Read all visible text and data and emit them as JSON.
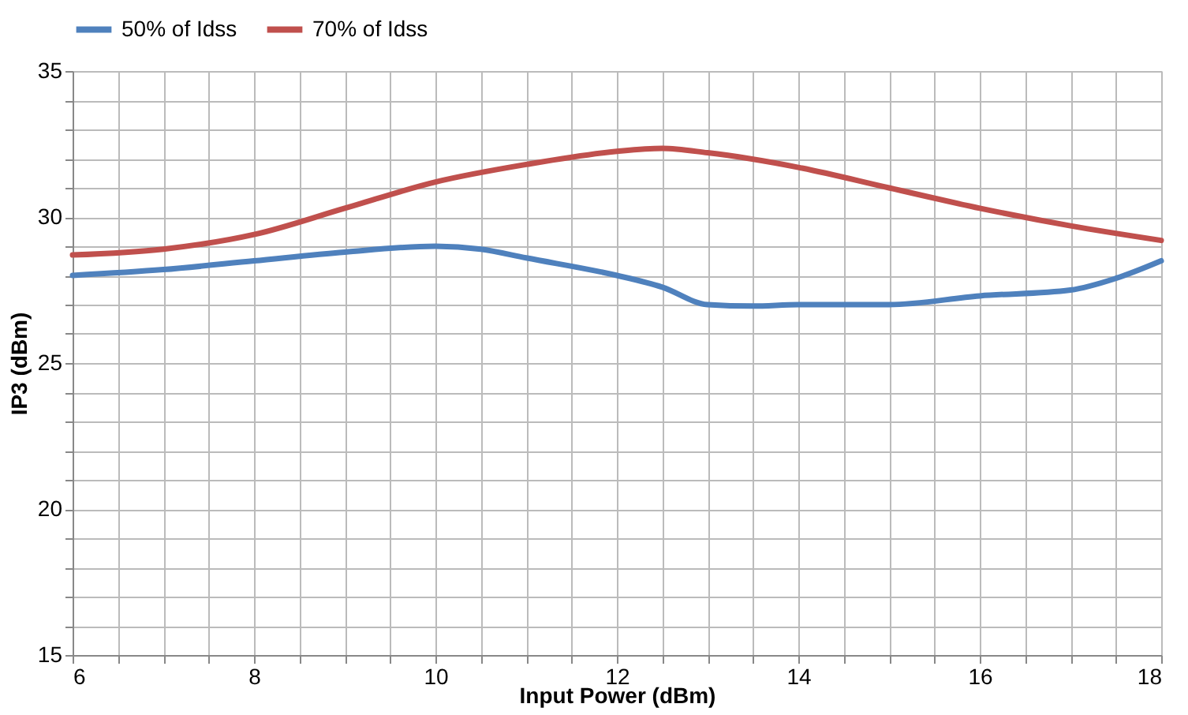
{
  "chart_data": {
    "type": "line",
    "xlabel": "Input Power (dBm)",
    "ylabel": "IP3 (dBm)",
    "xlim": [
      6,
      18
    ],
    "ylim": [
      15,
      35
    ],
    "xticks": [
      6,
      {
        "value": 6.5,
        "label": null
      },
      {
        "value": 7,
        "label": null
      },
      {
        "value": 7.5,
        "label": null
      },
      8,
      {
        "value": 8.5,
        "label": null
      },
      {
        "value": 9,
        "label": null
      },
      {
        "value": 9.5,
        "label": null
      },
      10,
      {
        "value": 10.5,
        "label": null
      },
      {
        "value": 11,
        "label": null
      },
      {
        "value": 11.5,
        "label": null
      },
      12,
      {
        "value": 12.5,
        "label": null
      },
      {
        "value": 13,
        "label": null
      },
      {
        "value": 13.5,
        "label": null
      },
      14,
      {
        "value": 14.5,
        "label": null
      },
      {
        "value": 15,
        "label": null
      },
      {
        "value": 15.5,
        "label": null
      },
      16,
      {
        "value": 16.5,
        "label": null
      },
      {
        "value": 17,
        "label": null
      },
      {
        "value": 17.5,
        "label": null
      },
      18
    ],
    "yticks": [
      15,
      {
        "value": 16,
        "label": null
      },
      {
        "value": 17,
        "label": null
      },
      {
        "value": 18,
        "label": null
      },
      {
        "value": 19,
        "label": null
      },
      20,
      {
        "value": 21,
        "label": null
      },
      {
        "value": 22,
        "label": null
      },
      {
        "value": 23,
        "label": null
      },
      {
        "value": 24,
        "label": null
      },
      25,
      {
        "value": 26,
        "label": null
      },
      {
        "value": 27,
        "label": null
      },
      {
        "value": 28,
        "label": null
      },
      {
        "value": 29,
        "label": null
      },
      30,
      {
        "value": 31,
        "label": null
      },
      {
        "value": 32,
        "label": null
      },
      {
        "value": 33,
        "label": null
      },
      {
        "value": 34,
        "label": null
      },
      35
    ],
    "grid": true,
    "legend": "top",
    "marker": "none",
    "line_style": "solid",
    "series": [
      {
        "name": "50% of Idss",
        "color": "#4f81bd",
        "x": [
          6,
          7,
          8,
          9,
          10,
          10.5,
          11,
          12,
          12.5,
          13,
          13.5,
          14,
          15,
          16,
          17,
          17.5,
          18
        ],
        "values": [
          28.0,
          28.2,
          28.5,
          28.8,
          29.0,
          28.9,
          28.6,
          28.0,
          27.6,
          27.0,
          26.95,
          27.0,
          27.0,
          27.3,
          27.5,
          27.9,
          28.5
        ]
      },
      {
        "name": "70% of Idss",
        "color": "#c0504d",
        "x": [
          6,
          7,
          8,
          9,
          10,
          11,
          12,
          12.5,
          13,
          14,
          15,
          16,
          17,
          18
        ],
        "values": [
          28.7,
          28.9,
          29.4,
          30.3,
          31.2,
          31.8,
          32.25,
          32.35,
          32.2,
          31.7,
          31.0,
          30.3,
          29.7,
          29.2
        ]
      }
    ]
  }
}
